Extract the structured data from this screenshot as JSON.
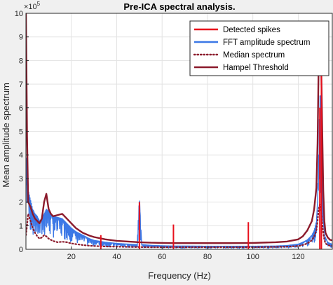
{
  "chart_data": {
    "type": "line",
    "title": "Pre-ICA spectral analysis.",
    "xlabel": "Frequency (Hz)",
    "ylabel": "Mean amplitude spectrum",
    "y_exponent_label": "×10",
    "y_exponent_power": "5",
    "xlim": [
      0,
      135
    ],
    "ylim": [
      0,
      1000000
    ],
    "x_ticks": [
      20,
      40,
      60,
      80,
      100,
      120
    ],
    "x_tick_labels": [
      "20",
      "40",
      "60",
      "80",
      "100",
      "120"
    ],
    "y_ticks": [
      0,
      100000,
      200000,
      300000,
      400000,
      500000,
      600000,
      700000,
      800000,
      900000,
      1000000
    ],
    "y_tick_labels": [
      "0",
      "1",
      "2",
      "3",
      "4",
      "5",
      "6",
      "7",
      "8",
      "9",
      "10"
    ],
    "grid": true,
    "legend_position": "top-right",
    "series": [
      {
        "name": "FFT amplitude spectrum",
        "style": "solid-noisy",
        "color": "#3c78e6",
        "x": [
          0,
          0.5,
          1,
          2,
          3,
          4,
          5,
          6,
          7,
          8,
          9,
          10,
          12,
          14,
          16,
          18,
          20,
          22,
          25,
          28,
          30,
          35,
          40,
          45,
          49,
          50,
          51,
          55,
          60,
          65,
          70,
          80,
          90,
          100,
          110,
          115,
          120,
          122,
          124,
          126,
          127,
          128,
          128.5,
          129,
          129.5,
          130,
          130.5,
          131,
          131.5,
          132,
          133,
          134,
          135
        ],
        "y": [
          380000,
          390000,
          250000,
          210000,
          170000,
          150000,
          140000,
          120000,
          130000,
          150000,
          170000,
          160000,
          140000,
          135000,
          130000,
          110000,
          90000,
          75000,
          60000,
          45000,
          38000,
          30000,
          25000,
          22000,
          20000,
          225000,
          20000,
          17000,
          15000,
          14000,
          14000,
          13000,
          13000,
          13000,
          14000,
          16000,
          22000,
          30000,
          40000,
          60000,
          80000,
          120000,
          200000,
          400000,
          650000,
          650000,
          400000,
          150000,
          80000,
          50000,
          30000,
          25000,
          22000
        ]
      },
      {
        "name": "Median spectrum",
        "style": "dotted",
        "color": "#8b1a2b",
        "x": [
          0,
          0.5,
          1,
          2,
          3,
          4,
          5,
          6,
          7,
          8,
          9,
          10,
          12,
          14,
          16,
          18,
          20,
          22,
          25,
          28,
          30,
          35,
          40,
          45,
          50,
          55,
          60,
          65,
          70,
          80,
          90,
          100,
          110,
          115,
          120,
          122,
          124,
          126,
          127,
          128,
          128.5,
          129,
          129.5,
          130,
          130.5,
          131,
          131.5,
          132,
          133,
          134,
          135
        ],
        "y": [
          60000,
          100000,
          150000,
          120000,
          90000,
          70000,
          55000,
          45000,
          50000,
          60000,
          55000,
          45000,
          35000,
          30000,
          32000,
          30000,
          25000,
          22000,
          18000,
          15000,
          14000,
          12000,
          11000,
          10000,
          9500,
          9000,
          9000,
          9000,
          9000,
          9000,
          9000,
          9000,
          10000,
          11000,
          14000,
          18000,
          25000,
          38000,
          55000,
          80000,
          120000,
          170000,
          190000,
          180000,
          120000,
          70000,
          40000,
          25000,
          18000,
          15000,
          14000
        ]
      },
      {
        "name": "Hampel Threshold",
        "style": "solid",
        "color": "#8b1a2b",
        "x": [
          0,
          0.5,
          1,
          2,
          3,
          4,
          5,
          6,
          7,
          8,
          9,
          10,
          11,
          12,
          14,
          16,
          18,
          20,
          22,
          25,
          28,
          30,
          35,
          40,
          45,
          50,
          55,
          60,
          65,
          70,
          80,
          90,
          100,
          110,
          115,
          120,
          122,
          124,
          126,
          127,
          128,
          128.5,
          129,
          129.5,
          130,
          130.5,
          131,
          131.5,
          132,
          133,
          134,
          135
        ],
        "y": [
          1000000,
          480000,
          200000,
          180000,
          150000,
          130000,
          120000,
          110000,
          130000,
          200000,
          235000,
          170000,
          150000,
          140000,
          145000,
          150000,
          130000,
          110000,
          90000,
          70000,
          58000,
          52000,
          42000,
          36000,
          33000,
          30000,
          28000,
          27000,
          26000,
          26000,
          26000,
          26000,
          27000,
          30000,
          33000,
          42000,
          55000,
          80000,
          120000,
          170000,
          260000,
          450000,
          800000,
          900000,
          850000,
          550000,
          250000,
          120000,
          70000,
          50000,
          40000,
          38000
        ]
      },
      {
        "name": "Detected spikes",
        "style": "stems",
        "color": "#e8101c",
        "x": [
          33,
          50,
          65,
          98,
          129.5,
          130.2
        ],
        "y": [
          60000,
          200000,
          105000,
          115000,
          600000,
          940000
        ]
      }
    ]
  }
}
